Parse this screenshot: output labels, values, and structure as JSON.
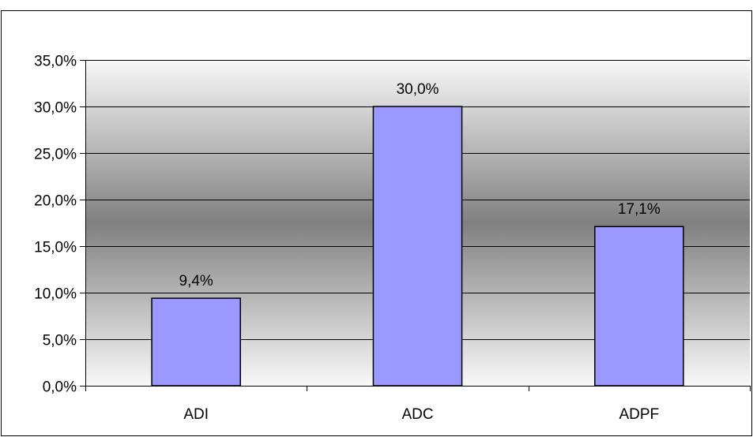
{
  "chart_data": {
    "type": "bar",
    "categories": [
      "ADI",
      "ADC",
      "ADPF"
    ],
    "values": [
      9.4,
      30.0,
      17.1
    ],
    "data_labels": [
      "9,4%",
      "30,0%",
      "17,1%"
    ],
    "yticks": [
      0,
      5,
      10,
      15,
      20,
      25,
      30,
      35
    ],
    "ytick_labels": [
      "0,0%",
      "5,0%",
      "10,0%",
      "15,0%",
      "20,0%",
      "25,0%",
      "30,0%",
      "35,0%"
    ],
    "ylim": [
      0,
      35
    ],
    "title": "",
    "xlabel": "",
    "ylabel": "",
    "grid": true,
    "legend": "none",
    "bar_color": "#9999ff",
    "plot_background": "gradient-gray"
  }
}
